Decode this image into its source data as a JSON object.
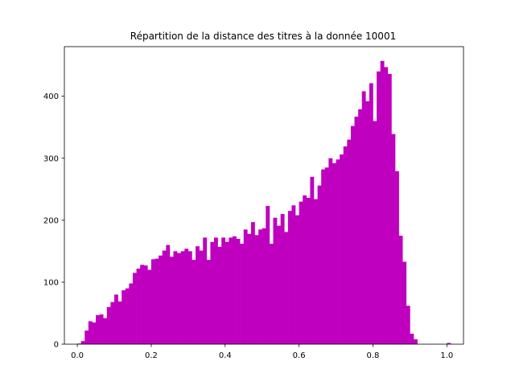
{
  "chart_data": {
    "type": "bar",
    "subtype": "histogram",
    "title": "Répartition de la distance des titres à la donnée 10001",
    "xlabel": "",
    "ylabel": "",
    "xlim": [
      -0.035,
      1.045
    ],
    "ylim": [
      0,
      480
    ],
    "x_ticks": [
      0.0,
      0.2,
      0.4,
      0.6,
      0.8,
      1.0
    ],
    "x_tick_labels": [
      "0.0",
      "0.2",
      "0.4",
      "0.6",
      "0.8",
      "1.0"
    ],
    "y_ticks": [
      0,
      100,
      200,
      300,
      400
    ],
    "y_tick_labels": [
      "0",
      "100",
      "200",
      "300",
      "400"
    ],
    "grid": false,
    "bar_color": "#bf00bf",
    "bin_start": 0.0,
    "bin_width": 0.01,
    "values": [
      1,
      5,
      22,
      37,
      35,
      47,
      48,
      42,
      60,
      68,
      80,
      69,
      87,
      90,
      98,
      115,
      122,
      128,
      127,
      120,
      137,
      138,
      143,
      151,
      160,
      141,
      150,
      147,
      150,
      154,
      150,
      136,
      158,
      151,
      172,
      136,
      165,
      172,
      157,
      172,
      165,
      172,
      174,
      170,
      162,
      185,
      178,
      197,
      176,
      185,
      187,
      223,
      162,
      204,
      191,
      210,
      181,
      215,
      224,
      208,
      230,
      240,
      236,
      270,
      234,
      256,
      282,
      285,
      300,
      292,
      298,
      306,
      319,
      330,
      352,
      367,
      379,
      408,
      392,
      421,
      360,
      440,
      457,
      447,
      436,
      339,
      279,
      175,
      133,
      62,
      17,
      8,
      0,
      0,
      0,
      0,
      0,
      0,
      0,
      0,
      2
    ]
  }
}
